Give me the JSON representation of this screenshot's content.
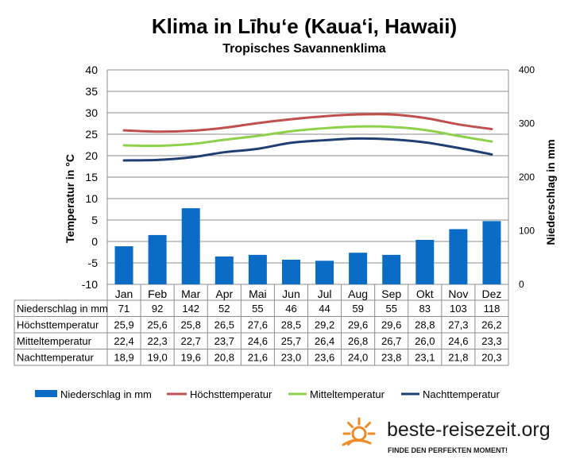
{
  "chart_data": {
    "type": "bar",
    "title": "Klima in Līhuʻe (Kauaʻi, Hawaii)",
    "subtitle": "Tropisches Savannenklima",
    "ylabel": "Temperatur in °C",
    "y2label": "Niederschlag in mm",
    "ylim": [
      -10,
      40
    ],
    "y2lim": [
      0,
      400
    ],
    "yticks": [
      "40",
      "35",
      "30",
      "25",
      "20",
      "15",
      "10",
      "5",
      "0",
      "-5",
      "-10"
    ],
    "y2ticks": [
      "400",
      "300",
      "200",
      "100",
      "0"
    ],
    "categories": [
      "Jan",
      "Feb",
      "Mar",
      "Apr",
      "Mai",
      "Jun",
      "Jul",
      "Aug",
      "Sep",
      "Okt",
      "Nov",
      "Dez"
    ],
    "series": [
      {
        "name": "Niederschlag in mm",
        "kind": "bar",
        "axis": "right",
        "color": "#0a6cc4",
        "values": [
          71,
          92,
          142,
          52,
          55,
          46,
          44,
          59,
          55,
          83,
          103,
          118
        ],
        "labels": [
          "71",
          "92",
          "142",
          "52",
          "55",
          "46",
          "44",
          "59",
          "55",
          "83",
          "103",
          "118"
        ]
      },
      {
        "name": "Höchsttemperatur",
        "kind": "line",
        "axis": "left",
        "color": "#c0504d",
        "values": [
          25.9,
          25.6,
          25.8,
          26.5,
          27.6,
          28.5,
          29.2,
          29.6,
          29.6,
          28.8,
          27.3,
          26.2
        ],
        "labels": [
          "25,9",
          "25,6",
          "25,8",
          "26,5",
          "27,6",
          "28,5",
          "29,2",
          "29,6",
          "29,6",
          "28,8",
          "27,3",
          "26,2"
        ]
      },
      {
        "name": "Mitteltemperatur",
        "kind": "line",
        "axis": "left",
        "color": "#8dd14a",
        "values": [
          22.4,
          22.3,
          22.7,
          23.7,
          24.6,
          25.7,
          26.4,
          26.8,
          26.7,
          26.0,
          24.6,
          23.3
        ],
        "labels": [
          "22,4",
          "22,3",
          "22,7",
          "23,7",
          "24,6",
          "25,7",
          "26,4",
          "26,8",
          "26,7",
          "26,0",
          "24,6",
          "23,3"
        ]
      },
      {
        "name": "Nachttemperatur",
        "kind": "line",
        "axis": "left",
        "color": "#1f3f73",
        "values": [
          18.9,
          19.0,
          19.6,
          20.8,
          21.6,
          23.0,
          23.6,
          24.0,
          23.8,
          23.1,
          21.8,
          20.3
        ],
        "labels": [
          "18,9",
          "19,0",
          "19,6",
          "20,8",
          "21,6",
          "23,0",
          "23,6",
          "24,0",
          "23,8",
          "23,1",
          "21,8",
          "20,3"
        ]
      }
    ],
    "legend_position": "bottom",
    "grid": true
  },
  "branding": {
    "site": "beste-reisezeit.org",
    "slogan": "FINDE DEN PERFEKTEN MOMENT!",
    "logo_icon": "sun-icon"
  }
}
